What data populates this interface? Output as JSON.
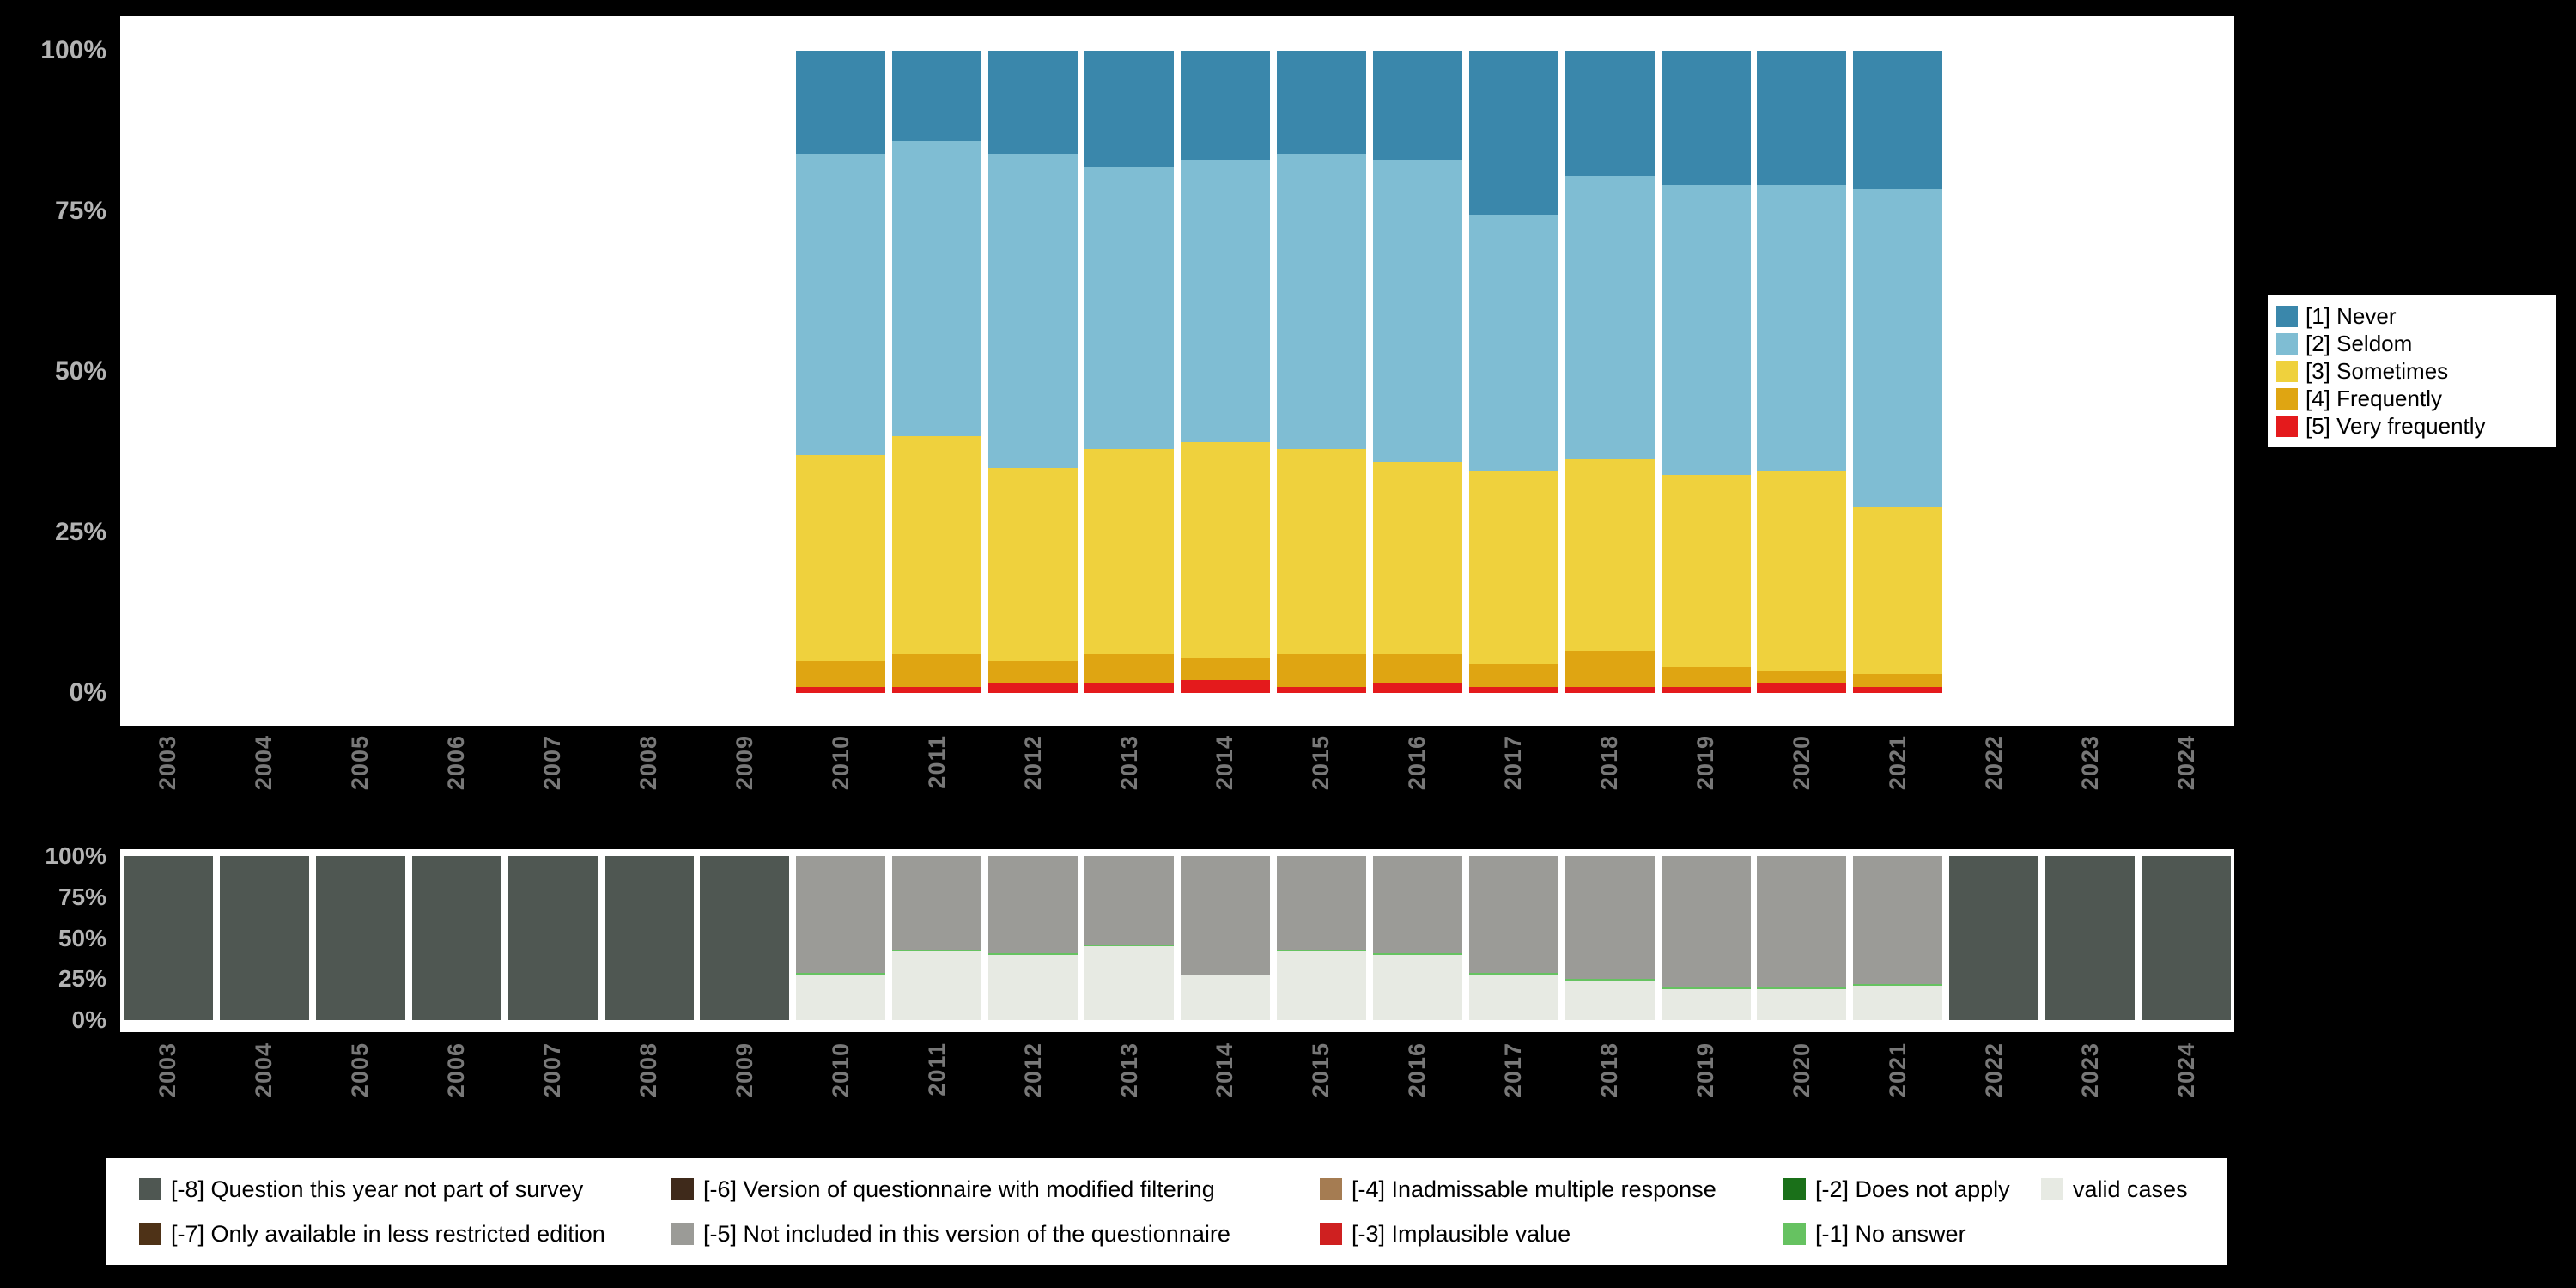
{
  "colors": {
    "page_background": "#000000",
    "panel_background": "#ffffff",
    "x_tick_text": "#787878",
    "y_tick_text": "#b3b3b3"
  },
  "chart_data": [
    {
      "id": "response-distribution",
      "type": "bar",
      "stacked": true,
      "title": "",
      "xlabel": "",
      "ylabel": "",
      "ylim": [
        0,
        100
      ],
      "grid": false,
      "legend_position": "right",
      "categories": [
        "2003",
        "2004",
        "2005",
        "2006",
        "2007",
        "2008",
        "2009",
        "2010",
        "2011",
        "2012",
        "2013",
        "2014",
        "2015",
        "2016",
        "2017",
        "2018",
        "2019",
        "2020",
        "2021",
        "2022",
        "2023",
        "2024"
      ],
      "yticks": [
        {
          "value": 0,
          "label": "0%"
        },
        {
          "value": 25,
          "label": "25%"
        },
        {
          "value": 50,
          "label": "50%"
        },
        {
          "value": 75,
          "label": "75%"
        },
        {
          "value": 100,
          "label": "100%"
        }
      ],
      "series": [
        {
          "name": "[5] Very frequently",
          "color": "#e41a1c",
          "values": [
            0,
            0,
            0,
            0,
            0,
            0,
            0,
            1,
            1,
            1.5,
            1.5,
            2,
            1,
            1.5,
            1,
            1,
            1,
            1.5,
            1,
            0,
            0,
            0
          ]
        },
        {
          "name": "[4] Frequently",
          "color": "#dfa512",
          "values": [
            0,
            0,
            0,
            0,
            0,
            0,
            0,
            4,
            5,
            3.5,
            4.5,
            3.5,
            5,
            4.5,
            3.5,
            5.5,
            3,
            2,
            2,
            0,
            0,
            0
          ]
        },
        {
          "name": "[3] Sometimes",
          "color": "#efd13d",
          "values": [
            0,
            0,
            0,
            0,
            0,
            0,
            0,
            32,
            34,
            30,
            32,
            33.5,
            32,
            30,
            30,
            30,
            30,
            31,
            26,
            0,
            0,
            0
          ]
        },
        {
          "name": "[2] Seldom",
          "color": "#7fbdd3",
          "values": [
            0,
            0,
            0,
            0,
            0,
            0,
            0,
            47,
            46,
            49,
            44,
            44,
            46,
            47,
            40,
            44,
            45,
            44.5,
            49.5,
            0,
            0,
            0
          ]
        },
        {
          "name": "[1] Never",
          "color": "#3a87ab",
          "values": [
            0,
            0,
            0,
            0,
            0,
            0,
            0,
            16,
            14,
            16,
            18,
            17,
            16,
            17,
            25.5,
            19.5,
            21,
            21,
            21.5,
            0,
            0,
            0
          ]
        }
      ]
    },
    {
      "id": "missing-values",
      "type": "bar",
      "stacked": true,
      "title": "",
      "xlabel": "",
      "ylabel": "",
      "ylim": [
        0,
        100
      ],
      "grid": false,
      "legend_position": "bottom",
      "categories": [
        "2003",
        "2004",
        "2005",
        "2006",
        "2007",
        "2008",
        "2009",
        "2010",
        "2011",
        "2012",
        "2013",
        "2014",
        "2015",
        "2016",
        "2017",
        "2018",
        "2019",
        "2020",
        "2021",
        "2022",
        "2023",
        "2024"
      ],
      "yticks": [
        {
          "value": 0,
          "label": "0%"
        },
        {
          "value": 25,
          "label": "25%"
        },
        {
          "value": 50,
          "label": "50%"
        },
        {
          "value": 75,
          "label": "75%"
        },
        {
          "value": 100,
          "label": "100%"
        }
      ],
      "series": [
        {
          "name": "valid cases",
          "color": "#e7eae3",
          "values": [
            0,
            0,
            0,
            0,
            0,
            0,
            0,
            28,
            42,
            40,
            45,
            27,
            42,
            40,
            28,
            24,
            19,
            19,
            21,
            0,
            0,
            0
          ]
        },
        {
          "name": "[-1] No answer",
          "color": "#66c261",
          "values": [
            0,
            0,
            0,
            0,
            0,
            0,
            0,
            1,
            1,
            1,
            1,
            1,
            1,
            1,
            1,
            1,
            1,
            1,
            1,
            0,
            0,
            0
          ]
        },
        {
          "name": "[-5] Not included in this version of the questionnaire",
          "color": "#9b9b97",
          "values": [
            0,
            0,
            0,
            0,
            0,
            0,
            0,
            71,
            57,
            59,
            54,
            72,
            57,
            59,
            71,
            75,
            80,
            80,
            78,
            0,
            0,
            0
          ]
        },
        {
          "name": "[-8] Question this year not part of survey",
          "color": "#4f5752",
          "values": [
            100,
            100,
            100,
            100,
            100,
            100,
            100,
            0,
            0,
            0,
            0,
            0,
            0,
            0,
            0,
            0,
            0,
            0,
            0,
            100,
            100,
            100
          ]
        }
      ]
    }
  ],
  "legend_right": {
    "items": [
      {
        "label": "[1] Never",
        "color": "#3a87ab"
      },
      {
        "label": "[2] Seldom",
        "color": "#7fbdd3"
      },
      {
        "label": "[3] Sometimes",
        "color": "#efd13d"
      },
      {
        "label": "[4] Frequently",
        "color": "#dfa512"
      },
      {
        "label": "[5] Very frequently",
        "color": "#e41a1c"
      }
    ]
  },
  "legend_bottom": {
    "rows": [
      [
        {
          "label": "[-8] Question this year not part of survey",
          "color": "#4f5752"
        },
        {
          "label": "[-6] Version of questionnaire with modified filtering",
          "color": "#3f2a1b"
        },
        {
          "label": "[-4] Inadmissable multiple response",
          "color": "#a57c52"
        },
        {
          "label": "[-2] Does not apply",
          "color": "#1a7019"
        },
        {
          "label": "valid cases",
          "color": "#e7eae3"
        }
      ],
      [
        {
          "label": "[-7] Only available in less restricted edition",
          "color": "#4e3217"
        },
        {
          "label": "[-5] Not included in this version of the questionnaire",
          "color": "#9b9b97"
        },
        {
          "label": "[-3] Implausible value",
          "color": "#cf2020"
        },
        {
          "label": "[-1] No answer",
          "color": "#66c261"
        }
      ]
    ]
  }
}
